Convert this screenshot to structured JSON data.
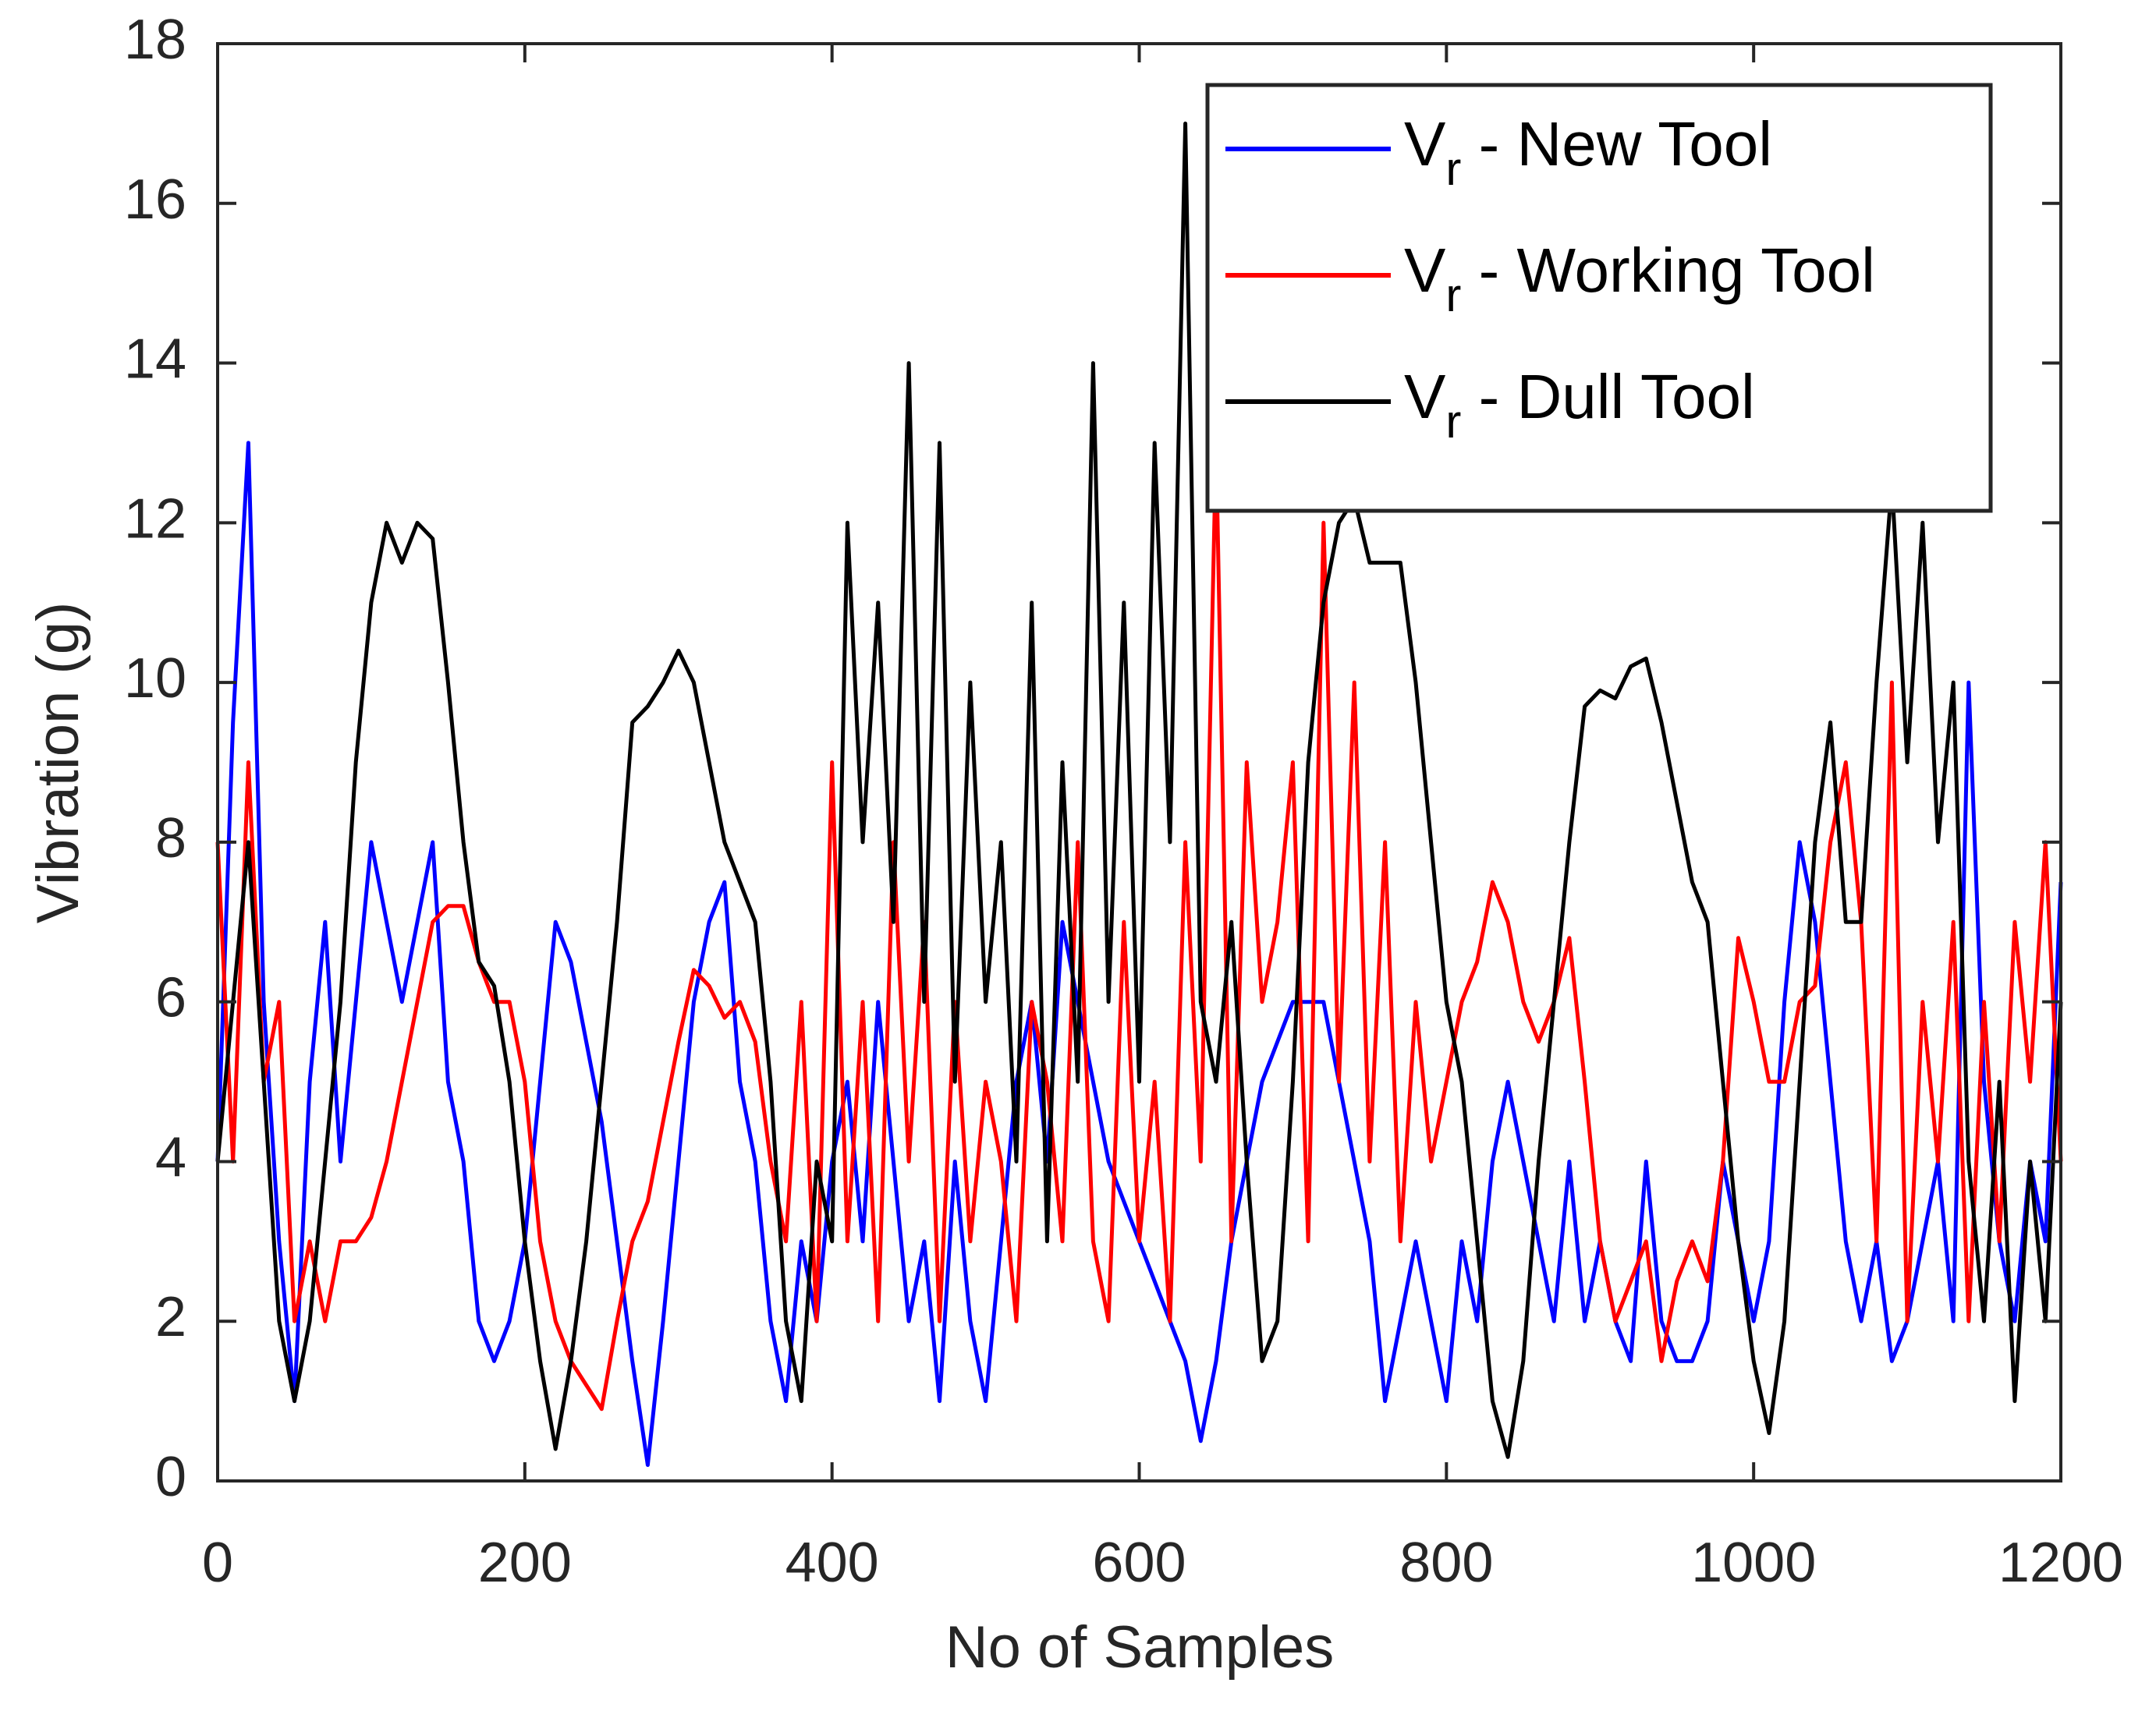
{
  "chart_data": {
    "type": "line",
    "xlabel": "No of Samples",
    "ylabel": "Vibration (g)",
    "x": [
      0,
      10,
      20,
      30,
      40,
      50,
      60,
      70,
      80,
      90,
      100,
      110,
      120,
      130,
      140,
      150,
      160,
      170,
      180,
      190,
      200,
      210,
      220,
      230,
      240,
      250,
      260,
      270,
      280,
      290,
      300,
      310,
      320,
      330,
      340,
      350,
      360,
      370,
      380,
      390,
      400,
      410,
      420,
      430,
      440,
      450,
      460,
      470,
      480,
      490,
      500,
      510,
      520,
      530,
      540,
      550,
      560,
      570,
      580,
      590,
      600,
      610,
      620,
      630,
      640,
      650,
      660,
      670,
      680,
      690,
      700,
      710,
      720,
      730,
      740,
      750,
      760,
      770,
      780,
      790,
      800,
      810,
      820,
      830,
      840,
      850,
      860,
      870,
      880,
      890,
      900,
      910,
      920,
      930,
      940,
      950,
      960,
      970,
      980,
      990,
      1000,
      1010,
      1020,
      1030,
      1040,
      1050,
      1060,
      1070,
      1080,
      1090,
      1100,
      1110,
      1120,
      1130,
      1140,
      1150,
      1160,
      1170,
      1180,
      1190,
      1200
    ],
    "series": [
      {
        "name": "Vr - New Tool",
        "color": "#0000ff",
        "values": [
          4,
          9.5,
          13,
          6,
          3,
          1,
          5,
          7,
          4,
          6,
          8,
          7,
          6,
          7,
          8,
          5,
          4,
          2,
          1.5,
          2,
          3,
          5,
          7,
          6.5,
          5.5,
          4.5,
          3,
          1.5,
          0.2,
          2,
          4,
          6,
          7,
          7.5,
          5,
          4,
          2,
          1,
          3,
          2,
          4,
          5,
          3,
          6,
          4,
          2,
          3,
          1,
          4,
          2,
          1,
          3,
          5,
          6,
          4,
          7,
          6,
          5,
          4,
          3.5,
          3,
          2.5,
          2,
          1.5,
          0.5,
          1.5,
          3,
          4,
          5,
          5.5,
          6,
          6,
          6,
          5,
          4,
          3,
          1,
          2,
          3,
          2,
          1,
          3,
          2,
          4,
          5,
          4,
          3,
          2,
          4,
          2,
          3,
          2,
          1.5,
          4,
          2,
          1.5,
          1.5,
          2,
          4,
          3,
          2,
          3,
          6,
          8,
          7,
          5,
          3,
          2,
          3,
          1.5,
          2,
          3,
          4,
          2,
          10,
          5,
          3,
          2,
          4,
          3,
          7.5
        ]
      },
      {
        "name": "Vr - Working Tool",
        "color": "#ff0000",
        "values": [
          8,
          4,
          9,
          5,
          6,
          2,
          3,
          2,
          3,
          3,
          3.3,
          4,
          5,
          6,
          7,
          7.2,
          7.2,
          6.5,
          6,
          6,
          5,
          3,
          2,
          1.5,
          1.2,
          0.9,
          2,
          3,
          3.5,
          4.5,
          5.5,
          6.4,
          6.2,
          5.8,
          6,
          5.5,
          4,
          3,
          6,
          2,
          9,
          3,
          6,
          2,
          8,
          4,
          7,
          2,
          6,
          3,
          5,
          4,
          2,
          6,
          5,
          3,
          8,
          3,
          2,
          7,
          3,
          5,
          2,
          8,
          4,
          13,
          3,
          9,
          6,
          7,
          9,
          3,
          12,
          5,
          10,
          4,
          8,
          3,
          6,
          4,
          5,
          6,
          6.5,
          7.5,
          7,
          6,
          5.5,
          6,
          6.8,
          5,
          3,
          2,
          2.5,
          3,
          1.5,
          2.5,
          3,
          2.5,
          4,
          6.8,
          6,
          5,
          5,
          6,
          6.2,
          8,
          9,
          7,
          3,
          10,
          2,
          6,
          4,
          7,
          2,
          6,
          3,
          7,
          5,
          8,
          4
        ]
      },
      {
        "name": "Vr - Dull Tool",
        "color": "#000000",
        "values": [
          4,
          6,
          8,
          5,
          2,
          1,
          2,
          4,
          6,
          9,
          11,
          12,
          11.5,
          12,
          11.8,
          10,
          8,
          6.5,
          6.2,
          5,
          3,
          1.5,
          0.4,
          1.5,
          3,
          5,
          7,
          9.5,
          9.7,
          10,
          10.4,
          10,
          9,
          8,
          7.5,
          7,
          5,
          2,
          1,
          4,
          3,
          12,
          8,
          11,
          7,
          14,
          6,
          13,
          5,
          10,
          6,
          8,
          4,
          11,
          3,
          9,
          5,
          14,
          6,
          11,
          5,
          13,
          8,
          17,
          6,
          5,
          7,
          4,
          1.5,
          2,
          5,
          9,
          11,
          12,
          12.3,
          11.5,
          11.5,
          11.5,
          10,
          8,
          6,
          5,
          3,
          1,
          0.3,
          1.5,
          4,
          6,
          8,
          9.7,
          9.9,
          9.8,
          10.2,
          10.3,
          9.5,
          8.5,
          7.5,
          7,
          5,
          3,
          1.5,
          0.6,
          2,
          5,
          8,
          9.5,
          7,
          7,
          10,
          12.5,
          9,
          12,
          8,
          10,
          4,
          2,
          5,
          1,
          4,
          2,
          6
        ]
      }
    ],
    "xlim": [
      0,
      1200
    ],
    "xticks": [
      0,
      200,
      400,
      600,
      800,
      1000,
      1200
    ],
    "ylim": [
      0,
      18
    ],
    "yticks": [
      0,
      2,
      4,
      6,
      8,
      10,
      12,
      14,
      16,
      18
    ],
    "grid": false,
    "legend": "upper right"
  }
}
